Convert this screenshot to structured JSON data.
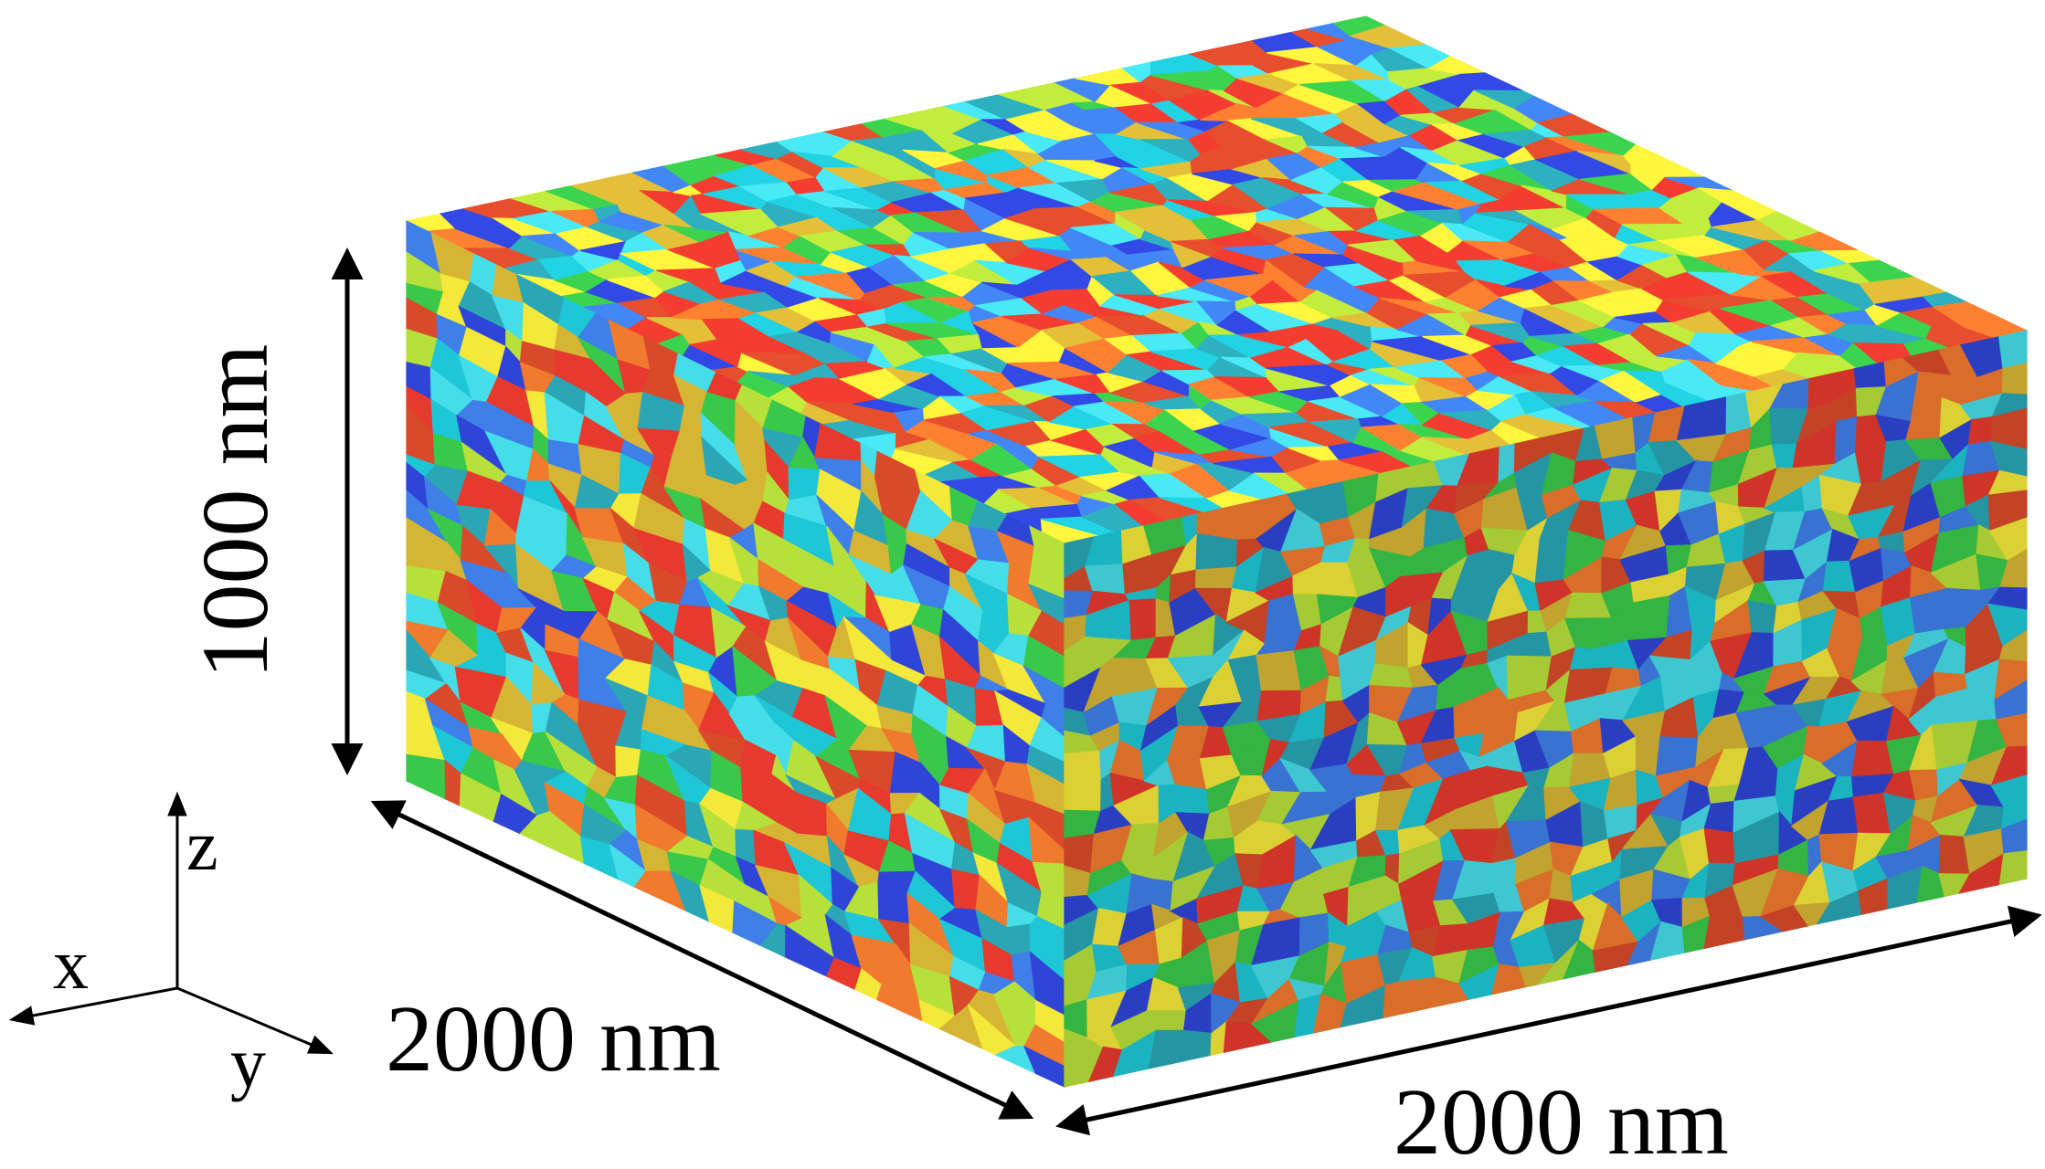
{
  "diagram": {
    "dimensions": {
      "height_label": "1000 nm",
      "depth_label": "2000 nm",
      "width_label": "2000 nm"
    },
    "axes": {
      "x_label": "x",
      "y_label": "y",
      "z_label": "z"
    },
    "grain_palette": [
      "#e63a2e",
      "#2f45d8",
      "#1fc7d6",
      "#f4e83a",
      "#f07a2e",
      "#39c84a",
      "#2aa6b5",
      "#d6b534",
      "#3f7fe8",
      "#b8e03a",
      "#d94a2a",
      "#45dde8"
    ]
  }
}
